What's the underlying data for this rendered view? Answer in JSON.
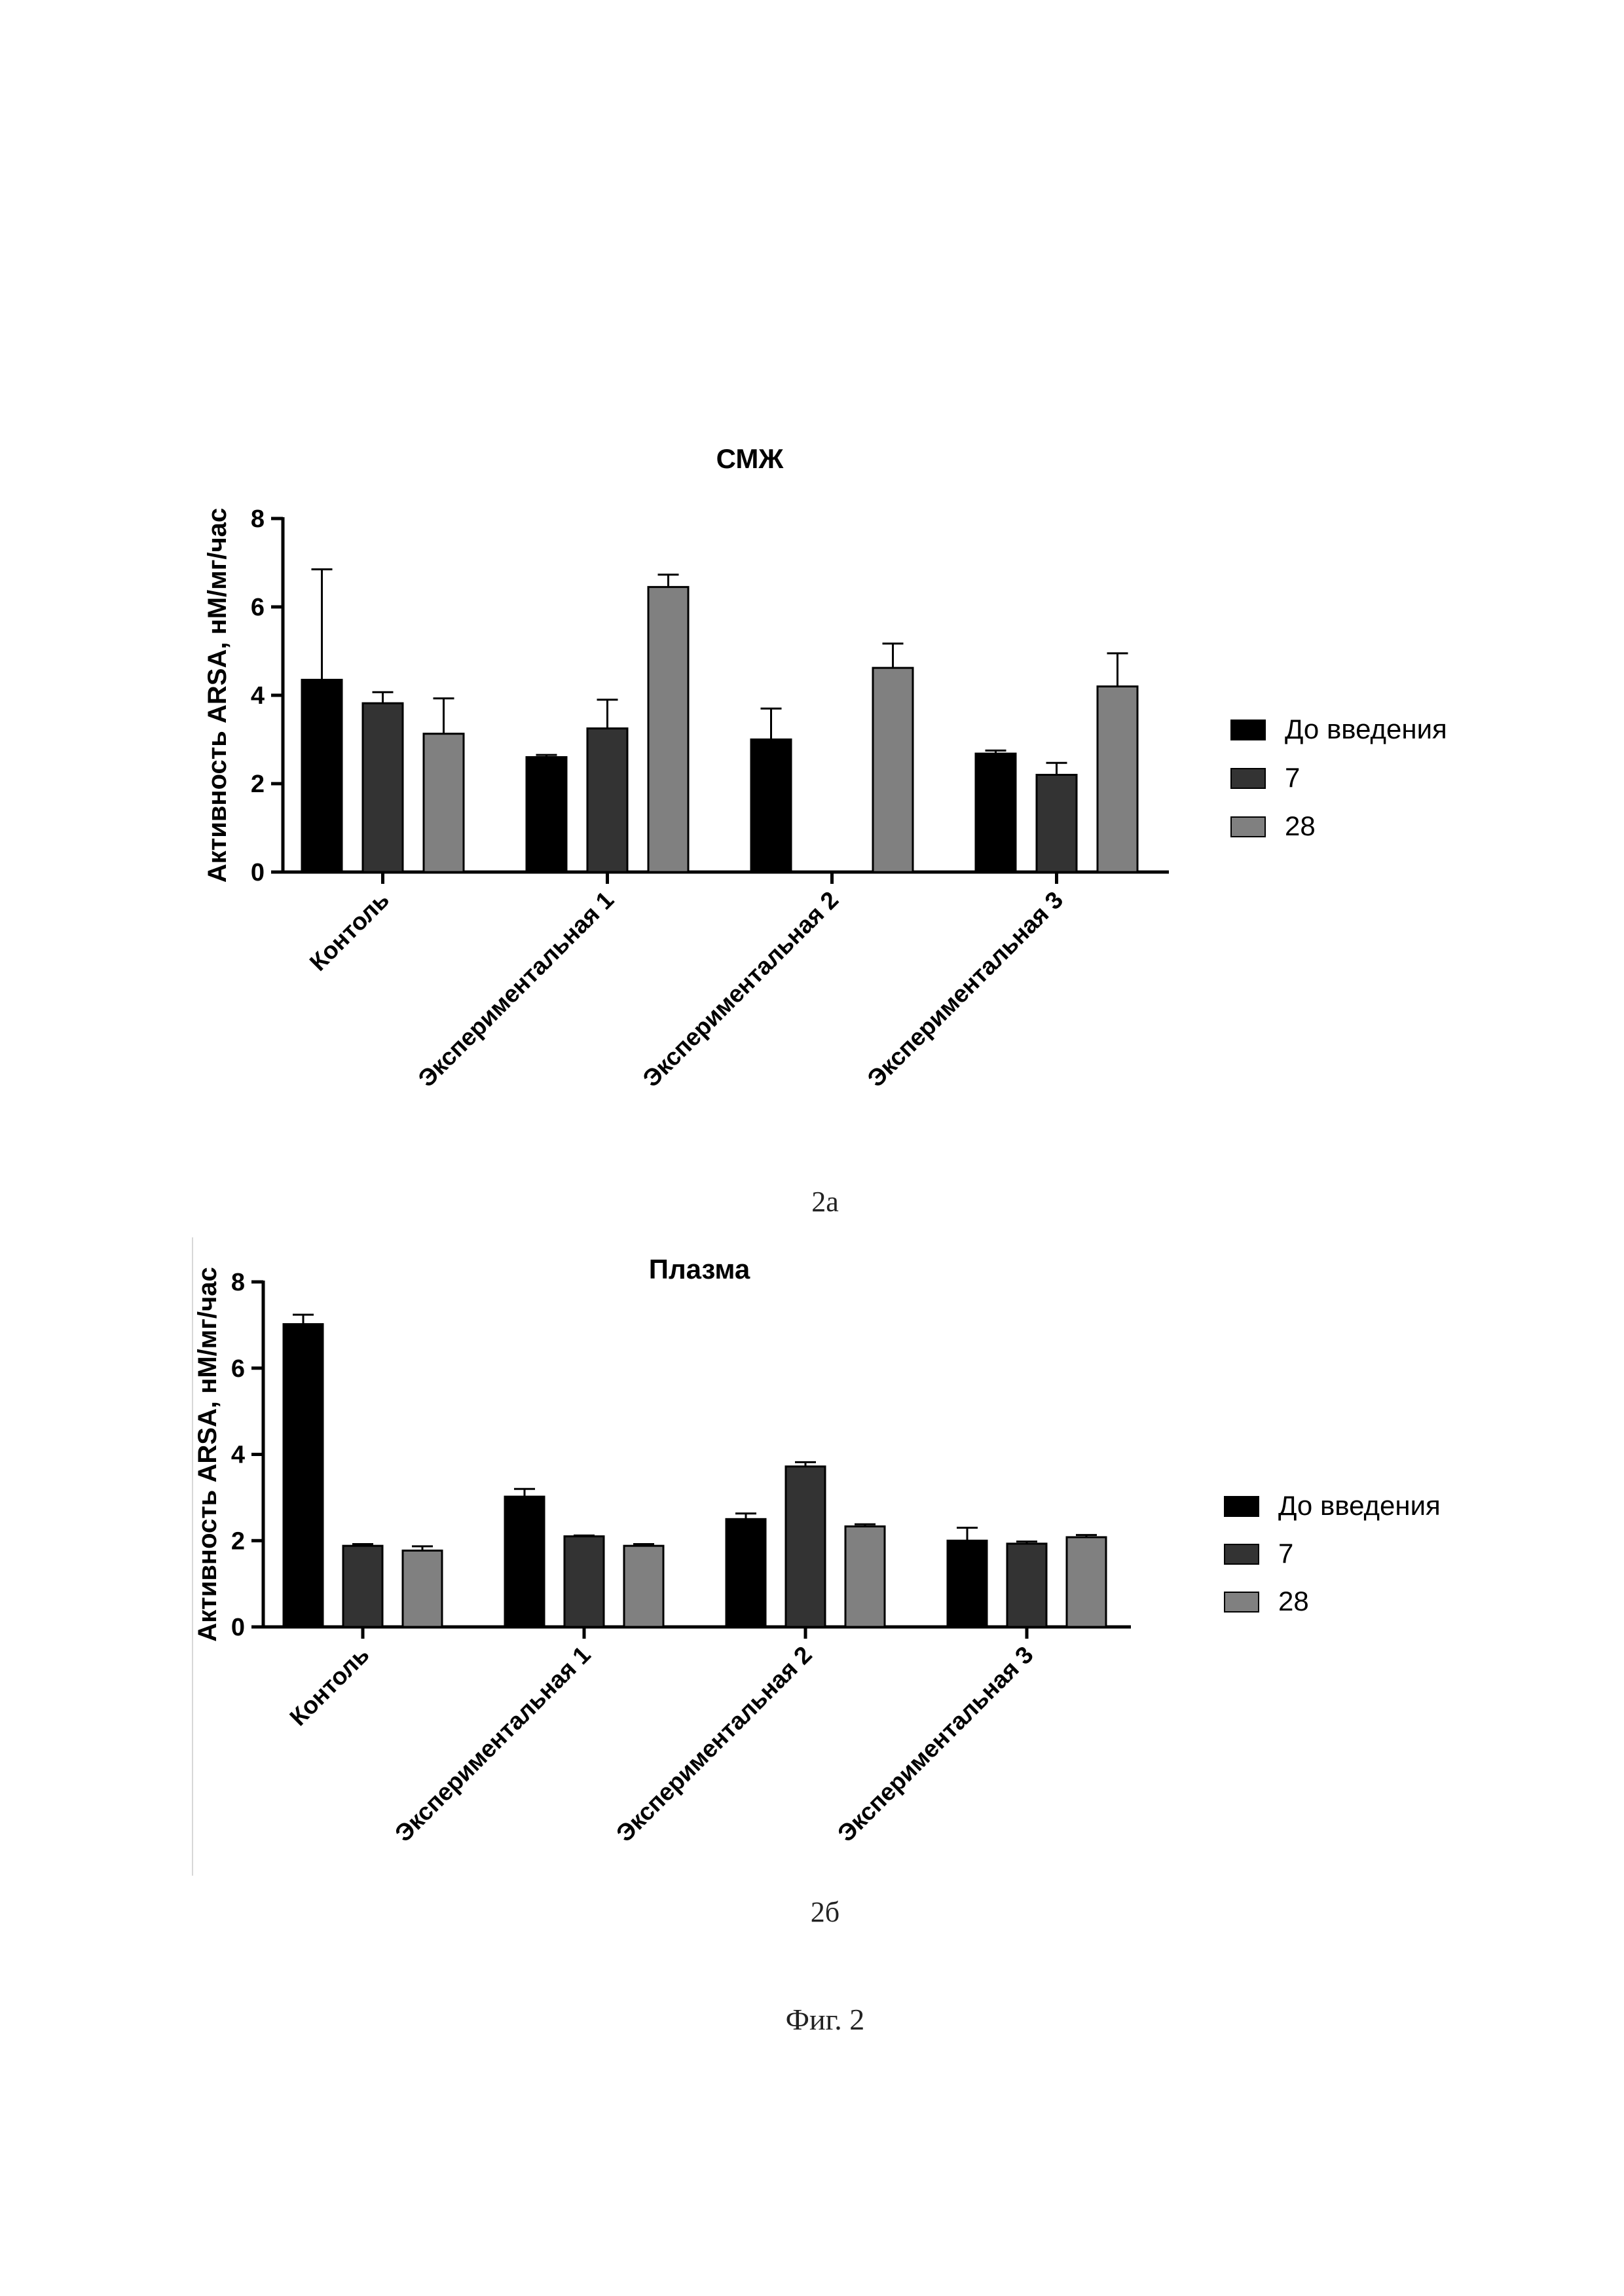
{
  "chart_data": [
    {
      "type": "bar",
      "title": "СМЖ",
      "ylabel": "Активность ARSA, нМ/мг/час",
      "ylim": [
        0,
        8
      ],
      "yticks": [
        0,
        2,
        4,
        6,
        8
      ],
      "categories": [
        "Контоль",
        "Экспериментальная 1",
        "Экспериментальная 2",
        "Экспериментальная 3"
      ],
      "series": [
        {
          "name": "До введения",
          "color": "#000000",
          "values": [
            4.35,
            2.6,
            3.0,
            2.68
          ],
          "errors": [
            2.5,
            0.05,
            0.7,
            0.07
          ]
        },
        {
          "name": "7",
          "color": "#333333",
          "values": [
            3.82,
            3.25,
            0,
            2.2
          ],
          "errors": [
            0.25,
            0.65,
            0,
            0.27
          ]
        },
        {
          "name": "28",
          "color": "#808080",
          "values": [
            3.13,
            6.45,
            4.62,
            4.2
          ],
          "errors": [
            0.8,
            0.28,
            0.55,
            0.75
          ]
        }
      ],
      "legend_position": "right"
    },
    {
      "type": "bar",
      "title": "Плазма",
      "ylabel": "Активность ARSA, нМ/мг/час",
      "ylim": [
        0,
        8
      ],
      "yticks": [
        0,
        2,
        4,
        6,
        8
      ],
      "categories": [
        "Контоль",
        "Экспериментальная 1",
        "Экспериментальная 2",
        "Экспериментальная 3"
      ],
      "series": [
        {
          "name": "До введения",
          "color": "#000000",
          "values": [
            7.02,
            3.02,
            2.5,
            2.0
          ],
          "errors": [
            0.22,
            0.18,
            0.13,
            0.3
          ]
        },
        {
          "name": "7",
          "color": "#333333",
          "values": [
            1.88,
            2.1,
            3.72,
            1.93
          ],
          "errors": [
            0.04,
            0.02,
            0.1,
            0.05
          ]
        },
        {
          "name": "28",
          "color": "#808080",
          "values": [
            1.77,
            1.88,
            2.33,
            2.08
          ],
          "errors": [
            0.1,
            0.04,
            0.05,
            0.05
          ]
        }
      ],
      "legend_position": "right"
    }
  ],
  "captions": {
    "a": "2а",
    "b": "2б",
    "figure": "Фиг. 2"
  }
}
